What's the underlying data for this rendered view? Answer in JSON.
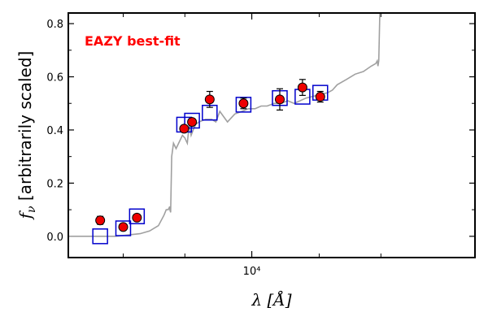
{
  "chart_data": {
    "type": "scatter",
    "title": "",
    "xlabel": "λ [Å]",
    "ylabel": "f_ν [arbitrarily scaled]",
    "xscale": "log",
    "xlim": [
      3200,
      40000
    ],
    "ylim": [
      -0.08,
      0.84
    ],
    "yticks": [
      0.0,
      0.2,
      0.4,
      0.6,
      0.8
    ],
    "ytick_labels": [
      "0.0",
      "0.2",
      "0.4",
      "0.6",
      "0.8"
    ],
    "xticks": [
      10000
    ],
    "xtick_labels": [
      "10⁴"
    ],
    "x_minor_ticks": [
      4500,
      6600,
      15200,
      22300
    ],
    "annotation": {
      "text": "EAZY best-fit",
      "color": "#ff0000",
      "position": "top-left"
    },
    "series": [
      {
        "kind": "line",
        "color": "#a0a0a0",
        "x": [
          3200,
          4300,
          5000,
          5300,
          5600,
          5800,
          5880,
          5950,
          6000,
          6010,
          6015,
          6040,
          6080,
          6150,
          6250,
          6500,
          6600,
          6700,
          6780,
          6860,
          6950,
          7050,
          7200,
          7500,
          7800,
          8000,
          8200,
          8400,
          8600,
          9000,
          9400,
          9800,
          10200,
          10600,
          11000,
          11500,
          12000,
          12500,
          13000,
          13500,
          14000,
          15000,
          16000,
          16500,
          17000,
          18000,
          19000,
          20000,
          21000,
          21600,
          21800,
          21900,
          22000,
          22150,
          22300
        ],
        "y": [
          0.0,
          0.0,
          0.01,
          0.02,
          0.04,
          0.08,
          0.1,
          0.1,
          0.11,
          0.11,
          0.1,
          0.09,
          0.3,
          0.35,
          0.33,
          0.38,
          0.37,
          0.35,
          0.42,
          0.38,
          0.4,
          0.42,
          0.43,
          0.44,
          0.44,
          0.43,
          0.47,
          0.45,
          0.43,
          0.46,
          0.47,
          0.48,
          0.48,
          0.49,
          0.49,
          0.5,
          0.5,
          0.51,
          0.5,
          0.51,
          0.52,
          0.53,
          0.54,
          0.55,
          0.57,
          0.59,
          0.61,
          0.62,
          0.64,
          0.65,
          0.66,
          0.64,
          0.66,
          0.84,
          0.84
        ]
      },
      {
        "kind": "model_points",
        "marker": "open-square",
        "color": "#0000cc",
        "x": [
          3900,
          4500,
          4900,
          6570,
          6900,
          7700,
          9500,
          11900,
          13700,
          15300
        ],
        "y": [
          0.0,
          0.03,
          0.075,
          0.42,
          0.435,
          0.465,
          0.495,
          0.52,
          0.525,
          0.54
        ]
      },
      {
        "kind": "observed",
        "marker": "filled-circle",
        "color": "#ee0000",
        "x": [
          3900,
          4500,
          4900,
          6570,
          6900,
          7700,
          9500,
          11900,
          13700,
          15300
        ],
        "y": [
          0.06,
          0.035,
          0.07,
          0.405,
          0.43,
          0.515,
          0.5,
          0.515,
          0.56,
          0.525
        ],
        "yerr": [
          0.015,
          0.01,
          0.012,
          0.012,
          0.012,
          0.03,
          0.02,
          0.04,
          0.03,
          0.02
        ]
      }
    ]
  }
}
